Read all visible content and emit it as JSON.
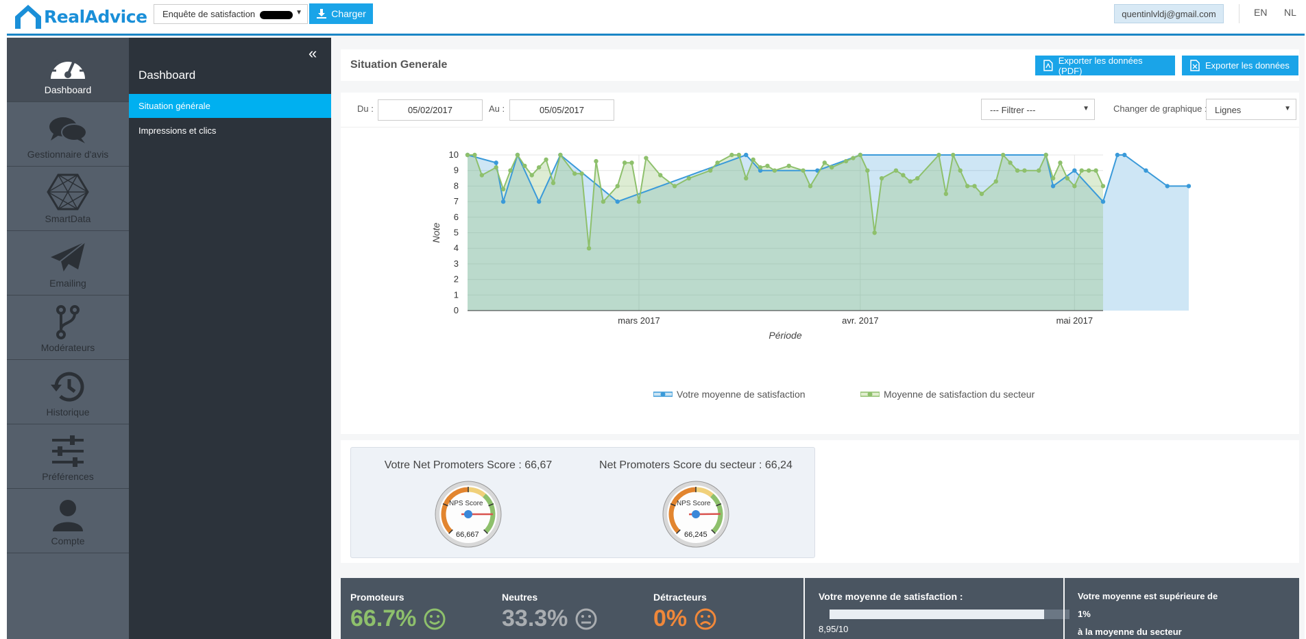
{
  "header": {
    "logo": "RealAdvice",
    "survey_select": "Enquête de satisfaction",
    "load_button": "Charger",
    "user_email": "quentinlvldj@gmail.com",
    "lang_en": "EN",
    "lang_nl": "NL"
  },
  "nav": [
    {
      "label": "Dashboard",
      "icon": "gauge-icon"
    },
    {
      "label": "Gestionnaire d'avis",
      "icon": "chat-bubbles-icon"
    },
    {
      "label": "SmartData",
      "icon": "hexagon-network-icon"
    },
    {
      "label": "Emailing",
      "icon": "paper-plane-icon"
    },
    {
      "label": "Modérateurs",
      "icon": "branch-icon"
    },
    {
      "label": "Historique",
      "icon": "history-icon"
    },
    {
      "label": "Préférences",
      "icon": "sliders-icon"
    },
    {
      "label": "Compte",
      "icon": "user-icon"
    }
  ],
  "sidebar": {
    "collapse_icon": "«",
    "title": "Dashboard",
    "items": [
      {
        "label": "Situation générale",
        "active": true
      },
      {
        "label": "Impressions et clics",
        "active": false
      }
    ]
  },
  "page": {
    "title": "Situation Generale",
    "export_pdf": "Exporter les données (PDF)",
    "export_xls": "Exporter les données"
  },
  "filters": {
    "from_label": "Du :",
    "from_value": "05/02/2017",
    "to_label": "Au :",
    "to_value": "05/05/2017",
    "filter_select": "--- Filtrer ---",
    "chart_type_label": "Changer de graphique :",
    "chart_type_value": "Lignes"
  },
  "chart_data": {
    "type": "area",
    "xlabel": "Période",
    "ylabel": "Note",
    "ylim": [
      0,
      10
    ],
    "x_ticks": [
      "mars 2017",
      "avr. 2017",
      "mai 2017"
    ],
    "y_ticks": [
      "0",
      "1",
      "2",
      "3",
      "4",
      "5",
      "6",
      "7",
      "8",
      "9",
      "10"
    ],
    "colors": {
      "yours": "#3a9ad9",
      "sector": "#8ec06c"
    },
    "series": [
      {
        "name": "Votre moyenne de satisfaction",
        "points": [
          [
            "2017-02-05",
            10
          ],
          [
            "2017-02-09",
            9.5
          ],
          [
            "2017-02-10",
            7
          ],
          [
            "2017-02-12",
            10
          ],
          [
            "2017-02-15",
            7
          ],
          [
            "2017-02-18",
            10
          ],
          [
            "2017-02-26",
            7
          ],
          [
            "2017-03-16",
            10
          ],
          [
            "2017-03-18",
            9
          ],
          [
            "2017-03-26",
            9
          ],
          [
            "2017-04-01",
            10
          ],
          [
            "2017-04-27",
            10
          ],
          [
            "2017-04-28",
            8
          ],
          [
            "2017-05-01",
            9
          ],
          [
            "2017-05-05",
            7
          ],
          [
            "2017-05-07",
            10
          ],
          [
            "2017-05-08",
            10
          ],
          [
            "2017-05-11",
            9
          ],
          [
            "2017-05-14",
            8
          ],
          [
            "2017-05-17",
            8
          ]
        ]
      },
      {
        "name": "Moyenne de satisfaction du secteur",
        "points": [
          [
            "2017-02-05",
            10
          ],
          [
            "2017-02-06",
            10
          ],
          [
            "2017-02-07",
            8.7
          ],
          [
            "2017-02-09",
            9.2
          ],
          [
            "2017-02-10",
            7.8
          ],
          [
            "2017-02-11",
            9
          ],
          [
            "2017-02-12",
            10
          ],
          [
            "2017-02-13",
            9.3
          ],
          [
            "2017-02-14",
            8.7
          ],
          [
            "2017-02-15",
            9.2
          ],
          [
            "2017-02-16",
            9.7
          ],
          [
            "2017-02-17",
            8.2
          ],
          [
            "2017-02-18",
            10
          ],
          [
            "2017-02-20",
            8.8
          ],
          [
            "2017-02-21",
            8.8
          ],
          [
            "2017-02-22",
            4
          ],
          [
            "2017-02-23",
            9.6
          ],
          [
            "2017-02-24",
            7
          ],
          [
            "2017-02-26",
            8
          ],
          [
            "2017-02-27",
            9.5
          ],
          [
            "2017-02-28",
            9.5
          ],
          [
            "2017-03-01",
            7
          ],
          [
            "2017-03-02",
            9.8
          ],
          [
            "2017-03-04",
            8.7
          ],
          [
            "2017-03-06",
            8
          ],
          [
            "2017-03-08",
            8.5
          ],
          [
            "2017-03-11",
            9
          ],
          [
            "2017-03-12",
            9.5
          ],
          [
            "2017-03-14",
            10
          ],
          [
            "2017-03-15",
            10
          ],
          [
            "2017-03-16",
            8.5
          ],
          [
            "2017-03-17",
            9.7
          ],
          [
            "2017-03-18",
            9.2
          ],
          [
            "2017-03-19",
            9.3
          ],
          [
            "2017-03-20",
            9
          ],
          [
            "2017-03-22",
            9.3
          ],
          [
            "2017-03-24",
            9
          ],
          [
            "2017-03-25",
            8
          ],
          [
            "2017-03-27",
            9.5
          ],
          [
            "2017-03-28",
            9.2
          ],
          [
            "2017-03-30",
            9.6
          ],
          [
            "2017-03-31",
            9.8
          ],
          [
            "2017-04-01",
            10
          ],
          [
            "2017-04-02",
            9
          ],
          [
            "2017-04-03",
            5
          ],
          [
            "2017-04-04",
            8.5
          ],
          [
            "2017-04-06",
            9
          ],
          [
            "2017-04-07",
            8.7
          ],
          [
            "2017-04-08",
            8.3
          ],
          [
            "2017-04-09",
            8.5
          ],
          [
            "2017-04-12",
            10
          ],
          [
            "2017-04-13",
            7.5
          ],
          [
            "2017-04-14",
            10
          ],
          [
            "2017-04-15",
            9
          ],
          [
            "2017-04-16",
            8
          ],
          [
            "2017-04-17",
            8
          ],
          [
            "2017-04-18",
            7.5
          ],
          [
            "2017-04-20",
            8.3
          ],
          [
            "2017-04-21",
            10
          ],
          [
            "2017-04-22",
            9.5
          ],
          [
            "2017-04-23",
            9
          ],
          [
            "2017-04-24",
            9
          ],
          [
            "2017-04-26",
            9
          ],
          [
            "2017-04-27",
            10
          ],
          [
            "2017-04-28",
            8.5
          ],
          [
            "2017-04-29",
            9.5
          ],
          [
            "2017-04-30",
            8.5
          ],
          [
            "2017-05-01",
            8
          ],
          [
            "2017-05-02",
            9
          ],
          [
            "2017-05-03",
            9
          ],
          [
            "2017-05-04",
            9
          ],
          [
            "2017-05-05",
            8
          ]
        ]
      }
    ]
  },
  "legend": {
    "yours": "Votre moyenne de satisfaction",
    "sector": "Moyenne de satisfaction du secteur"
  },
  "nps": {
    "yours_title": "Votre Net Promoters Score : 66,67",
    "sector_title": "Net Promoters Score du secteur : 66,24",
    "gauge_label": "NPS Score",
    "yours_value": "66,667",
    "sector_value": "66,245",
    "yours_score": 66.667,
    "sector_score": 66.245
  },
  "stats": {
    "promoters_label": "Promoteurs",
    "promoters_value": "66.7%",
    "neutral_label": "Neutres",
    "neutral_value": "33.3%",
    "detractors_label": "Détracteurs",
    "detractors_value": "0%",
    "colors": {
      "promoters": "#8ec06c",
      "neutral": "#a9adb1",
      "detractors": "#f0883a"
    },
    "avg_label": "Votre moyenne de satisfaction :",
    "avg_value": "8,95/10",
    "avg_fraction": 0.895,
    "comparison_line1": "Votre moyenne est supérieure de",
    "comparison_line2": "1%",
    "comparison_line3": "à la moyenne du secteur"
  }
}
